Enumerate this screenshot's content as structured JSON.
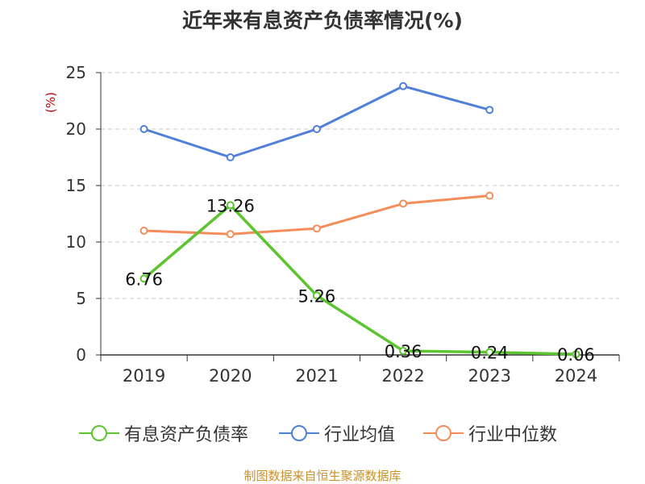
{
  "chart_data": {
    "type": "line",
    "title": "近年来有息资产负债率情况(%)",
    "ylabel": "(%)",
    "xlabel": "",
    "categories": [
      "2019",
      "2020",
      "2021",
      "2022",
      "2023",
      "2024"
    ],
    "y_ticks": [
      0,
      5,
      10,
      15,
      20,
      25
    ],
    "ylim": [
      0,
      25
    ],
    "grid": "horizontal dashed",
    "legend_position": "bottom",
    "series": [
      {
        "name": "有息资产负债率",
        "color": "#5cc42e",
        "values": [
          6.76,
          13.26,
          5.26,
          0.36,
          0.24,
          0.06
        ],
        "labels": [
          "6.76",
          "13.26",
          "5.26",
          "0.36",
          "0.24",
          "0.06"
        ]
      },
      {
        "name": "行业均值",
        "color": "#4f7fd9",
        "values": [
          20.0,
          17.5,
          20.0,
          23.8,
          21.7,
          null
        ]
      },
      {
        "name": "行业中位数",
        "color": "#f48d5a",
        "values": [
          11.0,
          10.7,
          11.2,
          13.4,
          14.1,
          null
        ]
      }
    ]
  },
  "source_note": "制图数据来自恒生聚源数据库"
}
